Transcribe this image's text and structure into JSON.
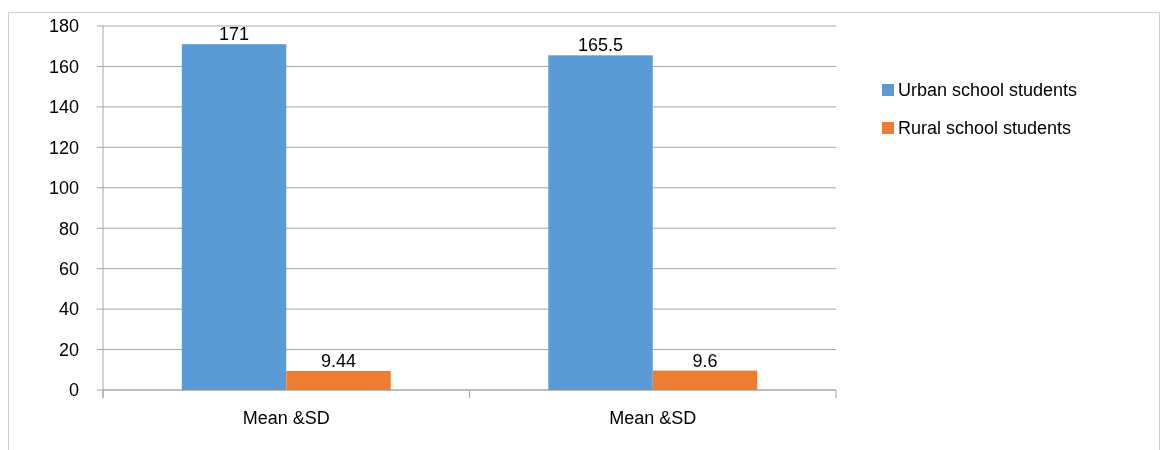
{
  "chart_data": {
    "type": "bar",
    "categories": [
      "Mean &SD",
      "Mean &SD"
    ],
    "series": [
      {
        "name": "Urban school students",
        "color": "#5b9bd5",
        "values": [
          171,
          165.5
        ]
      },
      {
        "name": "Rural school students",
        "color": "#ed7d31",
        "values": [
          9.44,
          9.6
        ]
      }
    ],
    "ylim": [
      0,
      180
    ],
    "yticks": [
      0,
      20,
      40,
      60,
      80,
      100,
      120,
      140,
      160,
      180
    ],
    "grid": "y",
    "legend": "right",
    "data_labels": true
  }
}
